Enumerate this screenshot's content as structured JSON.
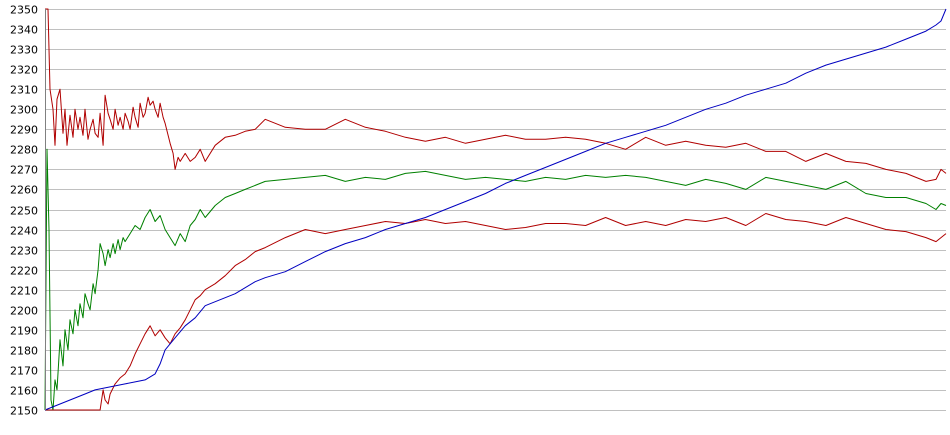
{
  "chart_data": {
    "type": "line",
    "title": "",
    "xlabel": "",
    "ylabel": "",
    "ylim": [
      2150,
      2350
    ],
    "y_ticks": [
      2150,
      2160,
      2170,
      2180,
      2190,
      2200,
      2210,
      2220,
      2230,
      2240,
      2250,
      2260,
      2270,
      2280,
      2290,
      2300,
      2310,
      2320,
      2330,
      2340,
      2350
    ],
    "xlim": [
      0,
      900
    ],
    "grid": true,
    "legend": "none",
    "series": [
      {
        "color": "#b00000",
        "x": [
          0,
          3,
          5,
          8,
          10,
          12,
          15,
          18,
          20,
          22,
          25,
          28,
          30,
          33,
          35,
          38,
          40,
          43,
          45,
          48,
          50,
          53,
          55,
          58,
          60,
          63,
          65,
          68,
          70,
          73,
          75,
          78,
          80,
          83,
          85,
          88,
          90,
          93,
          95,
          98,
          100,
          103,
          105,
          108,
          110,
          113,
          115,
          118,
          120,
          123,
          125,
          128,
          130,
          133,
          135,
          140,
          145,
          150,
          155,
          160,
          170,
          180,
          190,
          200,
          210,
          220,
          240,
          260,
          280,
          300,
          320,
          340,
          360,
          380,
          400,
          420,
          440,
          460,
          480,
          500,
          520,
          540,
          560,
          580,
          600,
          620,
          640,
          660,
          680,
          700,
          720,
          740,
          760,
          780,
          800,
          820,
          840,
          860,
          880,
          890,
          895,
          900
        ],
        "values": [
          2350,
          2350,
          2310,
          2300,
          2282,
          2305,
          2310,
          2288,
          2300,
          2282,
          2297,
          2286,
          2300,
          2290,
          2296,
          2287,
          2300,
          2285,
          2290,
          2295,
          2288,
          2286,
          2298,
          2282,
          2307,
          2298,
          2295,
          2290,
          2300,
          2292,
          2296,
          2290,
          2298,
          2294,
          2290,
          2301,
          2296,
          2291,
          2303,
          2296,
          2298,
          2306,
          2302,
          2304,
          2300,
          2296,
          2303,
          2296,
          2293,
          2287,
          2283,
          2278,
          2270,
          2276,
          2274,
          2278,
          2274,
          2276,
          2280,
          2274,
          2282,
          2286,
          2287,
          2289,
          2290,
          2295,
          2291,
          2290,
          2290,
          2295,
          2291,
          2289,
          2286,
          2284,
          2286,
          2283,
          2285,
          2287,
          2285,
          2285,
          2286,
          2285,
          2283,
          2280,
          2286,
          2282,
          2284,
          2282,
          2281,
          2283,
          2279,
          2279,
          2274,
          2278,
          2274,
          2273,
          2270,
          2268,
          2264,
          2265,
          2270,
          2268
        ]
      },
      {
        "color": "#008000",
        "x": [
          0,
          2,
          4,
          6,
          8,
          10,
          12,
          15,
          18,
          20,
          23,
          25,
          28,
          30,
          33,
          35,
          38,
          40,
          43,
          45,
          48,
          50,
          53,
          55,
          58,
          60,
          63,
          65,
          68,
          70,
          73,
          75,
          78,
          80,
          85,
          90,
          95,
          100,
          105,
          110,
          115,
          120,
          125,
          130,
          135,
          140,
          145,
          150,
          155,
          160,
          170,
          180,
          190,
          200,
          210,
          220,
          240,
          260,
          280,
          300,
          320,
          340,
          360,
          380,
          400,
          420,
          440,
          460,
          480,
          500,
          520,
          540,
          560,
          580,
          600,
          620,
          640,
          660,
          680,
          700,
          720,
          740,
          760,
          780,
          800,
          820,
          840,
          860,
          880,
          890,
          895,
          900
        ],
        "values": [
          2150,
          2280,
          2240,
          2155,
          2150,
          2165,
          2160,
          2185,
          2172,
          2190,
          2180,
          2195,
          2188,
          2200,
          2192,
          2203,
          2196,
          2208,
          2203,
          2200,
          2213,
          2208,
          2220,
          2233,
          2228,
          2222,
          2230,
          2226,
          2233,
          2228,
          2235,
          2230,
          2236,
          2234,
          2238,
          2242,
          2240,
          2246,
          2250,
          2244,
          2247,
          2240,
          2236,
          2232,
          2238,
          2234,
          2242,
          2245,
          2250,
          2246,
          2252,
          2256,
          2258,
          2260,
          2262,
          2264,
          2265,
          2266,
          2267,
          2264,
          2266,
          2265,
          2268,
          2269,
          2267,
          2265,
          2266,
          2265,
          2264,
          2266,
          2265,
          2267,
          2266,
          2267,
          2266,
          2264,
          2262,
          2265,
          2263,
          2260,
          2266,
          2264,
          2262,
          2260,
          2264,
          2258,
          2256,
          2256,
          2253,
          2250,
          2253,
          2252
        ]
      },
      {
        "color": "#b00000",
        "x": [
          0,
          10,
          20,
          30,
          40,
          50,
          55,
          58,
          60,
          63,
          65,
          70,
          75,
          80,
          85,
          90,
          95,
          100,
          105,
          110,
          115,
          120,
          125,
          130,
          135,
          140,
          145,
          150,
          155,
          160,
          170,
          180,
          190,
          200,
          210,
          220,
          240,
          260,
          280,
          300,
          320,
          340,
          360,
          380,
          400,
          420,
          440,
          460,
          480,
          500,
          520,
          540,
          560,
          580,
          600,
          620,
          640,
          660,
          680,
          700,
          720,
          740,
          760,
          780,
          800,
          820,
          840,
          860,
          880,
          890,
          895,
          900
        ],
        "values": [
          2150,
          2150,
          2150,
          2150,
          2150,
          2150,
          2150,
          2160,
          2155,
          2153,
          2158,
          2163,
          2166,
          2168,
          2172,
          2178,
          2183,
          2188,
          2192,
          2187,
          2190,
          2186,
          2183,
          2188,
          2191,
          2195,
          2200,
          2205,
          2207,
          2210,
          2213,
          2217,
          2222,
          2225,
          2229,
          2231,
          2236,
          2240,
          2238,
          2240,
          2242,
          2244,
          2243,
          2245,
          2243,
          2244,
          2242,
          2240,
          2241,
          2243,
          2243,
          2242,
          2246,
          2242,
          2244,
          2242,
          2245,
          2244,
          2246,
          2242,
          2248,
          2245,
          2244,
          2242,
          2246,
          2243,
          2240,
          2239,
          2236,
          2234,
          2236,
          2238
        ]
      },
      {
        "color": "#0000c0",
        "x": [
          0,
          10,
          20,
          30,
          40,
          50,
          60,
          70,
          80,
          90,
          100,
          110,
          115,
          120,
          130,
          140,
          150,
          160,
          170,
          180,
          190,
          200,
          210,
          220,
          240,
          260,
          280,
          300,
          320,
          340,
          360,
          380,
          400,
          420,
          440,
          460,
          480,
          500,
          520,
          540,
          560,
          580,
          600,
          620,
          640,
          660,
          680,
          700,
          720,
          740,
          760,
          780,
          800,
          820,
          840,
          860,
          880,
          890,
          895,
          900
        ],
        "values": [
          2150,
          2152,
          2154,
          2156,
          2158,
          2160,
          2161,
          2162,
          2163,
          2164,
          2165,
          2168,
          2173,
          2180,
          2186,
          2192,
          2196,
          2202,
          2204,
          2206,
          2208,
          2211,
          2214,
          2216,
          2219,
          2224,
          2229,
          2233,
          2236,
          2240,
          2243,
          2246,
          2250,
          2254,
          2258,
          2263,
          2267,
          2271,
          2275,
          2279,
          2283,
          2286,
          2289,
          2292,
          2296,
          2300,
          2303,
          2307,
          2310,
          2313,
          2318,
          2322,
          2325,
          2328,
          2331,
          2335,
          2339,
          2342,
          2344,
          2350
        ]
      }
    ]
  }
}
